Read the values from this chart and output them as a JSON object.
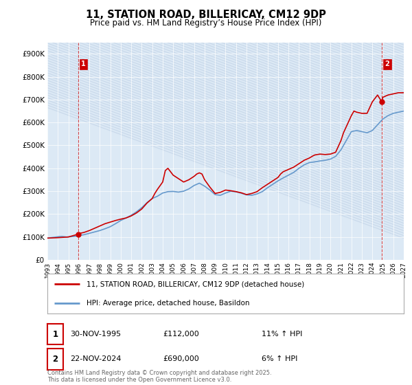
{
  "title": "11, STATION ROAD, BILLERICAY, CM12 9DP",
  "subtitle": "Price paid vs. HM Land Registry’s House Price Index (HPI)",
  "ylim": [
    0,
    950000
  ],
  "yticks": [
    0,
    100000,
    200000,
    300000,
    400000,
    500000,
    600000,
    700000,
    800000,
    900000
  ],
  "ytick_labels": [
    "£0",
    "£100K",
    "£200K",
    "£300K",
    "£400K",
    "£500K",
    "£600K",
    "£700K",
    "£800K",
    "£900K"
  ],
  "xlim": [
    1993,
    2027
  ],
  "bg_color": "#ffffff",
  "plot_bg_color": "#dce9f5",
  "hatch_color": "#c8d8ea",
  "grid_color": "#ffffff",
  "red_color": "#cc0000",
  "blue_color": "#6699cc",
  "dashed_line_color": "#cc0000",
  "point1_x": 1995.92,
  "point1_y": 112000,
  "point2_x": 2024.9,
  "point2_y": 690000,
  "legend_line1": "11, STATION ROAD, BILLERICAY, CM12 9DP (detached house)",
  "legend_line2": "HPI: Average price, detached house, Basildon",
  "table_row1": [
    "1",
    "30-NOV-1995",
    "£112,000",
    "11% ↑ HPI"
  ],
  "table_row2": [
    "2",
    "22-NOV-2024",
    "£690,000",
    "6% ↑ HPI"
  ],
  "footer": "Contains HM Land Registry data © Crown copyright and database right 2025.\nThis data is licensed under the Open Government Licence v3.0.",
  "hpi_x": [
    1993.0,
    1993.08,
    1993.17,
    1993.25,
    1993.33,
    1993.42,
    1993.5,
    1993.58,
    1993.67,
    1993.75,
    1993.83,
    1993.92,
    1994.0,
    1994.08,
    1994.17,
    1994.25,
    1994.33,
    1994.42,
    1994.5,
    1994.58,
    1994.67,
    1994.75,
    1994.83,
    1994.92,
    1995.0,
    1995.08,
    1995.17,
    1995.25,
    1995.33,
    1995.42,
    1995.5,
    1995.58,
    1995.67,
    1995.75,
    1995.83,
    1995.92,
    1996.0,
    1996.5,
    1997.0,
    1997.5,
    1998.0,
    1998.5,
    1999.0,
    1999.5,
    2000.0,
    2000.5,
    2001.0,
    2001.5,
    2002.0,
    2002.5,
    2003.0,
    2003.5,
    2004.0,
    2004.5,
    2005.0,
    2005.5,
    2006.0,
    2006.5,
    2007.0,
    2007.5,
    2008.0,
    2008.5,
    2009.0,
    2009.5,
    2010.0,
    2010.5,
    2011.0,
    2011.5,
    2012.0,
    2012.5,
    2013.0,
    2013.5,
    2014.0,
    2014.5,
    2015.0,
    2015.5,
    2016.0,
    2016.5,
    2017.0,
    2017.5,
    2018.0,
    2018.5,
    2019.0,
    2019.5,
    2020.0,
    2020.5,
    2021.0,
    2021.5,
    2022.0,
    2022.5,
    2023.0,
    2023.5,
    2024.0,
    2024.5,
    2025.0,
    2025.5,
    2026.0,
    2026.5,
    2027.0
  ],
  "hpi_y": [
    95000,
    95500,
    96000,
    96500,
    97000,
    97500,
    98000,
    98500,
    99000,
    99500,
    100000,
    100500,
    101000,
    101500,
    102000,
    102000,
    102500,
    102500,
    102000,
    101500,
    101000,
    100500,
    100000,
    100200,
    100500,
    100800,
    101000,
    101200,
    101500,
    101800,
    102000,
    102500,
    103000,
    103500,
    104000,
    104500,
    106000,
    110000,
    116000,
    122000,
    128000,
    136000,
    145000,
    158000,
    172000,
    183000,
    195000,
    210000,
    228000,
    250000,
    268000,
    278000,
    292000,
    298000,
    299000,
    296000,
    300000,
    310000,
    325000,
    335000,
    322000,
    305000,
    285000,
    282000,
    292000,
    300000,
    297000,
    291000,
    284000,
    282000,
    288000,
    298000,
    315000,
    330000,
    345000,
    358000,
    370000,
    382000,
    400000,
    415000,
    425000,
    428000,
    432000,
    435000,
    440000,
    452000,
    480000,
    520000,
    560000,
    565000,
    560000,
    555000,
    565000,
    590000,
    615000,
    630000,
    640000,
    645000,
    650000
  ],
  "price_x": [
    1993.0,
    1994.0,
    1995.0,
    1995.92,
    1996.0,
    1996.5,
    1997.0,
    1997.5,
    1998.0,
    1998.5,
    1999.0,
    1999.5,
    2000.0,
    2000.5,
    2001.0,
    2001.5,
    2002.0,
    2002.5,
    2003.0,
    2003.25,
    2003.5,
    2004.0,
    2004.25,
    2004.5,
    2005.0,
    2005.5,
    2006.0,
    2006.5,
    2007.0,
    2007.25,
    2007.5,
    2007.75,
    2008.0,
    2008.5,
    2009.0,
    2009.5,
    2010.0,
    2010.5,
    2011.0,
    2011.5,
    2012.0,
    2012.5,
    2013.0,
    2013.5,
    2014.0,
    2014.5,
    2015.0,
    2015.25,
    2015.5,
    2016.0,
    2016.5,
    2017.0,
    2017.5,
    2018.0,
    2018.25,
    2018.5,
    2019.0,
    2019.5,
    2020.0,
    2020.5,
    2021.0,
    2021.25,
    2021.5,
    2022.0,
    2022.25,
    2022.5,
    2023.0,
    2023.5,
    2024.0,
    2024.5,
    2024.9,
    2025.0,
    2025.5,
    2026.0,
    2026.5,
    2027.0
  ],
  "price_y": [
    95000,
    97000,
    100000,
    112000,
    115000,
    120000,
    128000,
    138000,
    148000,
    158000,
    165000,
    172000,
    178000,
    183000,
    192000,
    205000,
    222000,
    248000,
    268000,
    290000,
    308000,
    340000,
    390000,
    400000,
    370000,
    355000,
    340000,
    350000,
    365000,
    375000,
    380000,
    375000,
    350000,
    318000,
    290000,
    295000,
    305000,
    302000,
    298000,
    293000,
    285000,
    290000,
    298000,
    315000,
    330000,
    345000,
    360000,
    375000,
    385000,
    395000,
    405000,
    420000,
    435000,
    445000,
    452000,
    458000,
    462000,
    460000,
    462000,
    470000,
    520000,
    555000,
    580000,
    630000,
    650000,
    645000,
    640000,
    640000,
    690000,
    720000,
    690000,
    710000,
    720000,
    725000,
    730000,
    730000
  ]
}
